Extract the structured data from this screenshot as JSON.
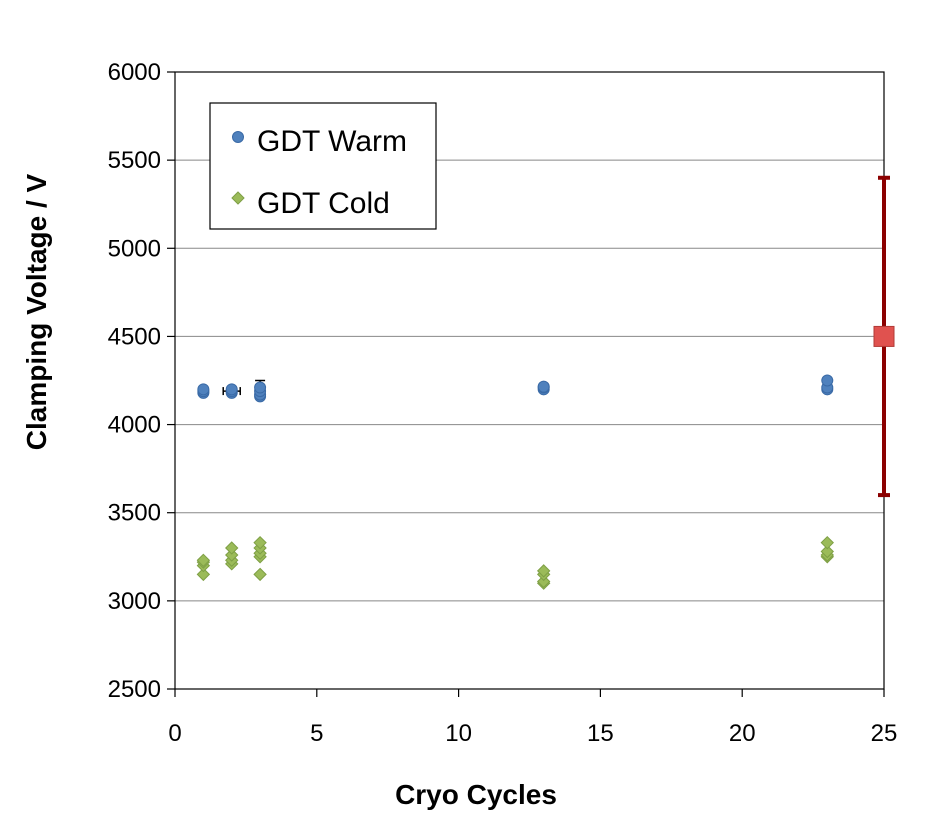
{
  "chart_data": {
    "type": "scatter",
    "title": "",
    "xlabel": "Cryo Cycles",
    "ylabel": "Clamping Voltage / V",
    "xlim": [
      0,
      25
    ],
    "ylim": [
      2500,
      6000
    ],
    "xticks": [
      "0",
      "5",
      "10",
      "15",
      "20",
      "25"
    ],
    "yticks": [
      "2500",
      "3000",
      "3500",
      "4000",
      "4500",
      "5000",
      "5500",
      "6000"
    ],
    "grid": "horizontal",
    "legend_position": "top-left",
    "series": [
      {
        "name": "GDT Warm",
        "marker": "circle",
        "color": "#4F81BD",
        "points": [
          [
            1,
            4180
          ],
          [
            1,
            4190
          ],
          [
            1,
            4200
          ],
          [
            2,
            4180
          ],
          [
            2,
            4190
          ],
          [
            2,
            4200
          ],
          [
            3,
            4160
          ],
          [
            3,
            4170
          ],
          [
            3,
            4190
          ],
          [
            3,
            4210
          ],
          [
            13,
            4200
          ],
          [
            13,
            4210
          ],
          [
            13,
            4215
          ],
          [
            23,
            4200
          ],
          [
            23,
            4210
          ],
          [
            23,
            4250
          ]
        ]
      },
      {
        "name": "GDT Cold",
        "marker": "diamond",
        "color": "#9BBB59",
        "points": [
          [
            1,
            3150
          ],
          [
            1,
            3200
          ],
          [
            1,
            3220
          ],
          [
            1,
            3230
          ],
          [
            2,
            3210
          ],
          [
            2,
            3230
          ],
          [
            2,
            3260
          ],
          [
            2,
            3300
          ],
          [
            3,
            3150
          ],
          [
            3,
            3250
          ],
          [
            3,
            3270
          ],
          [
            3,
            3300
          ],
          [
            3,
            3330
          ],
          [
            13,
            3100
          ],
          [
            13,
            3110
          ],
          [
            13,
            3150
          ],
          [
            13,
            3170
          ],
          [
            23,
            3250
          ],
          [
            23,
            3260
          ],
          [
            23,
            3280
          ],
          [
            23,
            3330
          ]
        ]
      }
    ],
    "error_bars": [
      {
        "x": 2,
        "y": 4190,
        "xerr_low": 0.3,
        "xerr_high": 0.3,
        "color": "#000000"
      },
      {
        "x": 3,
        "y": 4190,
        "yerr_low": 0,
        "yerr_high": 60,
        "color": "#000000"
      }
    ],
    "reference": {
      "x": 25,
      "y": 4500,
      "low": 3600,
      "high": 5400,
      "marker": "square",
      "color": "#E0524F",
      "bar_color": "#8B0000"
    }
  }
}
